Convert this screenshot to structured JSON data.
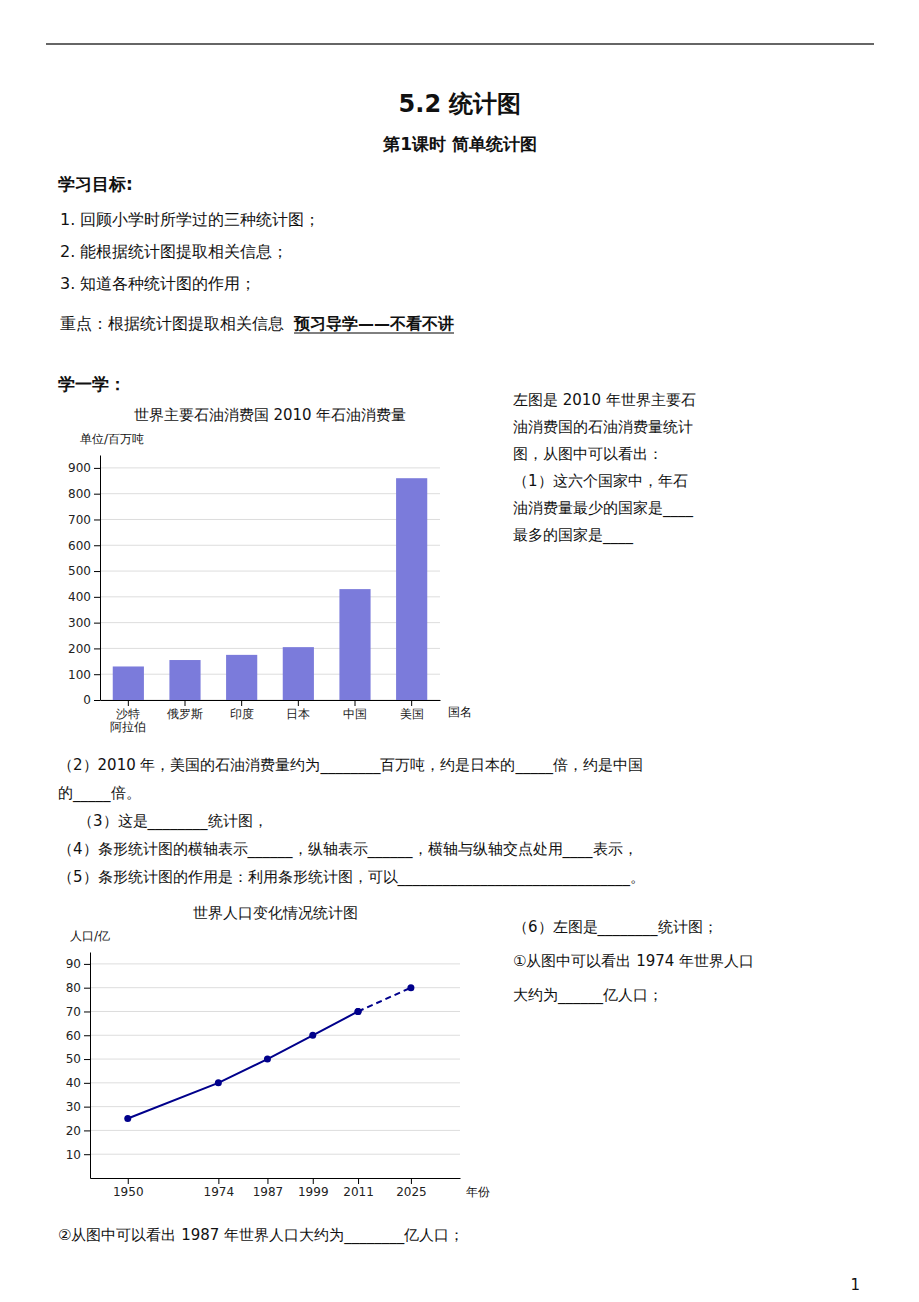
{
  "title": "5.2 统计图",
  "subtitle": "第1课时  简单统计图",
  "annotations": [
    "学习目标:",
    "1.   回顾小学时所学过的三种统计图；",
    "2.   能根据统计图提取相关信息；",
    "3.   知道各种统计图的作用；",
    "重点：根据统计图提取相关信息",
    "预习导学——不看不讲",
    "学一学：",
    "1"
  ],
  "chart_data": [
    {
      "type": "bar",
      "title": "世界主要石油消费国 2010 年石油消费量",
      "xlabel": "国名",
      "ylabel": "单位/百万吨",
      "categories": [
        "沙特\n阿拉伯",
        "俄罗斯",
        "印度",
        "日本",
        "中国",
        "美国"
      ],
      "values": [
        130,
        155,
        175,
        205,
        430,
        860
      ],
      "color": "#7b7bdb",
      "ylim": [
        0,
        950
      ],
      "yticks": [
        0,
        100,
        200,
        300,
        400,
        500,
        600,
        700,
        800,
        900
      ],
      "grid": true,
      "annotations": [
        "左图是 2010 年世界主要石",
        "油消费国的石油消费量统计",
        "图，从图中可以看出：",
        "（1）这六个国家中，年石",
        "油消费量最少的国家是____",
        "最多的国家是____",
        "（2）2010 年，美国的石油消费量约为________百万吨，约是日本的_____倍，约是中国",
        "的_____倍。",
        "（3）这是________统计图，",
        "（4）条形统计图的横轴表示______，纵轴表示______，横轴与纵轴交点处用____表示，",
        "（5）条形统计图的作用是：利用条形统计图，可以_______________________________。"
      ]
    },
    {
      "type": "line",
      "title": "世界人口变化情况统计图",
      "xlabel": "年份",
      "ylabel": "人口/亿",
      "x": [
        1950,
        1974,
        1987,
        1999,
        2011,
        2025
      ],
      "series": [
        {
          "values": [
            25,
            40,
            50,
            60,
            70,
            null
          ],
          "color": "#00008b",
          "marker": "circle",
          "line_style": "solid"
        },
        {
          "values": [
            null,
            null,
            null,
            null,
            70,
            80
          ],
          "color": "#00008b",
          "marker": "circle",
          "line_style": "dashed"
        }
      ],
      "xlim": [
        1940,
        2038
      ],
      "xticks": [
        1950,
        1974,
        1987,
        1999,
        2011,
        2025
      ],
      "ylim": [
        0,
        95
      ],
      "yticks": [
        10,
        20,
        30,
        40,
        50,
        60,
        70,
        80,
        90
      ],
      "grid": true,
      "annotations": [
        "（6）左图是________统计图；",
        "①从图中可以看出 1974 年世界人口",
        "大约为______亿人口；",
        "②从图中可以看出 1987 年世界人口大约为________亿人口；"
      ]
    }
  ]
}
